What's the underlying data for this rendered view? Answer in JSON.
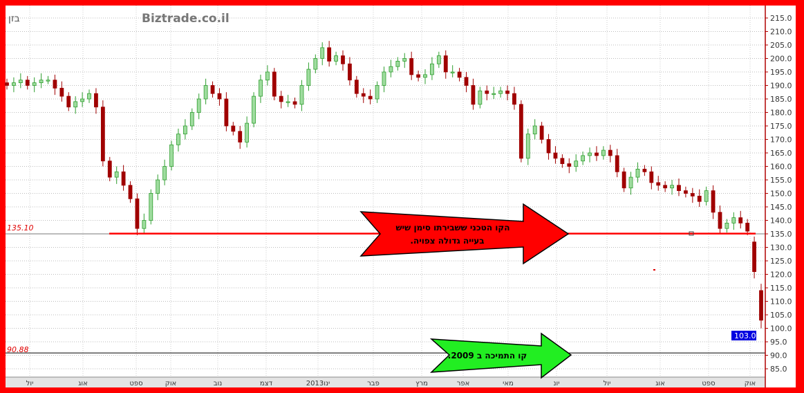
{
  "header": {
    "symbol": "בזן",
    "watermark": "Biztrade.co.il"
  },
  "colors": {
    "frame": "#ff0000",
    "up_candle": "#2e9e2e",
    "down_candle": "#a00000",
    "resistance_line": "#ff0000",
    "support_line": "#000000",
    "price_badge": "#0000e0",
    "red_arrow": "#ff0000",
    "green_arrow": "#22ee22"
  },
  "chart_data": {
    "type": "candlestick",
    "title": "",
    "x_tick_labels": [
      "יול",
      "אוג",
      "ספט",
      "אוק",
      "נוב",
      "דצמ",
      "2013ינו",
      "פבר",
      "מרץ",
      "אפר",
      "מאי",
      "יונ",
      "יול",
      "אוג",
      "ספט",
      "אוק"
    ],
    "y_ticks": [
      "215.0",
      "210.0",
      "205.0",
      "200.0",
      "195.0",
      "190.0",
      "185.0",
      "180.0",
      "175.0",
      "170.0",
      "165.0",
      "160.0",
      "155.0",
      "150.0",
      "145.0",
      "140.0",
      "135.0",
      "130.0",
      "125.0",
      "120.0",
      "115.0",
      "110.0",
      "105.0",
      "100.0",
      "95.0",
      "90.0",
      "85.0"
    ],
    "ylim": [
      85,
      215
    ],
    "y_axis_side": "right",
    "grid": true,
    "closes": [
      190,
      191,
      192,
      190,
      191,
      192,
      192,
      189,
      186,
      182,
      184,
      185,
      187,
      182,
      162,
      156,
      158,
      153,
      148,
      137,
      140,
      150,
      155,
      160,
      168,
      172,
      175,
      180,
      185,
      190,
      187,
      185,
      175,
      173,
      169,
      176,
      186,
      192,
      195,
      186,
      184,
      184,
      183,
      190,
      196,
      200,
      204,
      199,
      201,
      198,
      192,
      187,
      186,
      185,
      190,
      195,
      197,
      199,
      200,
      194,
      193,
      194,
      198,
      201,
      195,
      195,
      193,
      190,
      183,
      188,
      187,
      187,
      188,
      187,
      183,
      163,
      172,
      175,
      170,
      165,
      163,
      161,
      160,
      162,
      164,
      165,
      164,
      166,
      164,
      158,
      152,
      156,
      159,
      158,
      154,
      153,
      152,
      153,
      151,
      150,
      149,
      147,
      151,
      143,
      137,
      139,
      141,
      139,
      136,
      121,
      103
    ],
    "last_price": "103.0",
    "levels": [
      {
        "label": "135.10",
        "value": 135.1
      },
      {
        "label": "90.88",
        "value": 90.88
      }
    ]
  },
  "annotations": {
    "red_arrow_line1": "הקו הטכני  ששבירתו סימן שיש",
    "red_arrow_line2": "בעייה  גדולה צפויה.",
    "green_arrow_text": "קו התמיכה ב 2009."
  }
}
